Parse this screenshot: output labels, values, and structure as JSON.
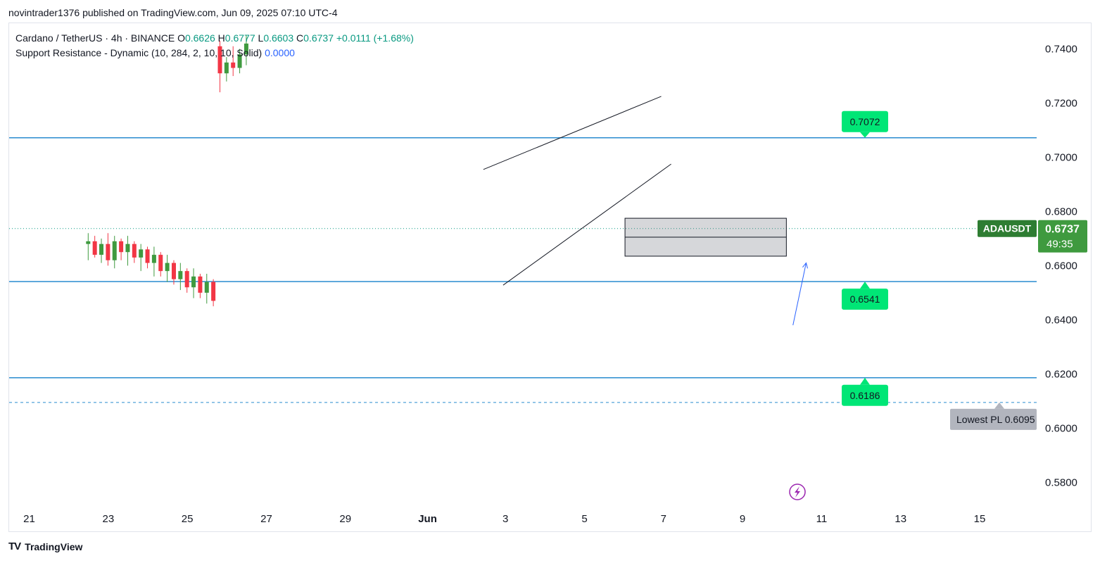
{
  "header": {
    "published_text": "novintrader1376 published on TradingView.com, Jun 09, 2025 07:10 UTC-4"
  },
  "legend": {
    "symbol_line": "Cardano / TetherUS · 4h · BINANCE",
    "o_label": "O",
    "o_value": "0.6626",
    "h_label": "H",
    "h_value": "0.6777",
    "l_label": "L",
    "l_value": "0.6603",
    "c_label": "C",
    "c_value": "0.6737",
    "change": "+0.0111 (+1.68%)",
    "indicator_label": "Support Resistance - Dynamic (10, 284, 2, 10, 10, Solid)",
    "indicator_value": "0.0000"
  },
  "price_scale": {
    "ticks": [
      "0.7400",
      "0.7200",
      "0.7000",
      "0.6800",
      "0.6600",
      "0.6400",
      "0.6200",
      "0.6000",
      "0.5800"
    ],
    "current_symbol": "ADAUSDT",
    "current_price": "0.6737",
    "countdown": "49:35"
  },
  "time_scale": {
    "ticks": [
      "21",
      "23",
      "25",
      "27",
      "29",
      "Jun",
      "3",
      "5",
      "7",
      "9",
      "11",
      "13",
      "15"
    ]
  },
  "levels": [
    {
      "label": "0.7072",
      "price": 0.7072
    },
    {
      "label": "0.6541",
      "price": 0.6541
    },
    {
      "label": "0.6186",
      "price": 0.6186
    }
  ],
  "lowest_pl": {
    "label": "Lowest PL 0.6095",
    "price": 0.6095
  },
  "footer": {
    "brand": "TradingView",
    "mark": "TV"
  },
  "colors": {
    "up": "#089981",
    "up_fill": "#3f9a3f",
    "down": "#f23645",
    "level_line": "#2a8ccf",
    "label_green": "#00e676",
    "symbol_badge": "#2e7d32"
  },
  "chart_data": {
    "type": "candlestick",
    "symbol": "ADAUSDT",
    "interval": "4h",
    "ylim": [
      0.571,
      0.7495
    ],
    "x_range": [
      "2025-05-20",
      "2025-06-15"
    ],
    "grid": false,
    "candles": [
      {
        "t": "2025-05-22T00:00",
        "o": 0.668,
        "h": 0.672,
        "l": 0.662,
        "c": 0.669
      },
      {
        "t": "2025-05-22T04:00",
        "o": 0.669,
        "h": 0.671,
        "l": 0.663,
        "c": 0.664
      },
      {
        "t": "2025-05-22T08:00",
        "o": 0.664,
        "h": 0.67,
        "l": 0.661,
        "c": 0.668
      },
      {
        "t": "2025-05-22T12:00",
        "o": 0.668,
        "h": 0.672,
        "l": 0.66,
        "c": 0.662
      },
      {
        "t": "2025-05-22T16:00",
        "o": 0.662,
        "h": 0.671,
        "l": 0.659,
        "c": 0.669
      },
      {
        "t": "2025-05-22T20:00",
        "o": 0.669,
        "h": 0.67,
        "l": 0.662,
        "c": 0.665
      },
      {
        "t": "2025-05-23T00:00",
        "o": 0.665,
        "h": 0.671,
        "l": 0.66,
        "c": 0.668
      },
      {
        "t": "2025-05-23T04:00",
        "o": 0.668,
        "h": 0.669,
        "l": 0.661,
        "c": 0.663
      },
      {
        "t": "2025-05-23T08:00",
        "o": 0.663,
        "h": 0.668,
        "l": 0.658,
        "c": 0.666
      },
      {
        "t": "2025-05-23T12:00",
        "o": 0.666,
        "h": 0.667,
        "l": 0.659,
        "c": 0.661
      },
      {
        "t": "2025-05-23T16:00",
        "o": 0.661,
        "h": 0.667,
        "l": 0.656,
        "c": 0.664
      },
      {
        "t": "2025-05-23T20:00",
        "o": 0.664,
        "h": 0.665,
        "l": 0.656,
        "c": 0.658
      },
      {
        "t": "2025-05-24T00:00",
        "o": 0.658,
        "h": 0.664,
        "l": 0.654,
        "c": 0.661
      },
      {
        "t": "2025-05-24T04:00",
        "o": 0.661,
        "h": 0.662,
        "l": 0.653,
        "c": 0.655
      },
      {
        "t": "2025-05-24T08:00",
        "o": 0.655,
        "h": 0.661,
        "l": 0.651,
        "c": 0.658
      },
      {
        "t": "2025-05-24T12:00",
        "o": 0.658,
        "h": 0.659,
        "l": 0.65,
        "c": 0.652
      },
      {
        "t": "2025-05-24T16:00",
        "o": 0.652,
        "h": 0.659,
        "l": 0.648,
        "c": 0.656
      },
      {
        "t": "2025-05-24T20:00",
        "o": 0.656,
        "h": 0.657,
        "l": 0.648,
        "c": 0.65
      },
      {
        "t": "2025-05-25T00:00",
        "o": 0.65,
        "h": 0.657,
        "l": 0.646,
        "c": 0.654
      },
      {
        "t": "2025-05-25T04:00",
        "o": 0.654,
        "h": 0.655,
        "l": 0.645,
        "c": 0.647
      },
      {
        "t": "2025-05-25T08:00",
        "o": 0.741,
        "h": 0.743,
        "l": 0.724,
        "c": 0.731
      },
      {
        "t": "2025-05-25T12:00",
        "o": 0.731,
        "h": 0.737,
        "l": 0.728,
        "c": 0.735
      },
      {
        "t": "2025-05-25T16:00",
        "o": 0.735,
        "h": 0.741,
        "l": 0.73,
        "c": 0.733
      },
      {
        "t": "2025-05-25T20:00",
        "o": 0.733,
        "h": 0.74,
        "l": 0.731,
        "c": 0.738
      },
      {
        "t": "2025-05-26T00:00",
        "o": 0.738,
        "h": 0.745,
        "l": 0.734,
        "c": 0.742
      }
    ],
    "shapes": [
      {
        "kind": "trendline",
        "from": [
          "2025-06-01T00:00",
          0.6955
        ],
        "to": [
          "2025-06-05T12:00",
          0.7225
        ]
      },
      {
        "kind": "trendline",
        "from": [
          "2025-06-01T12:00",
          0.6528
        ],
        "to": [
          "2025-06-05T18:00",
          0.6975
        ]
      },
      {
        "kind": "rectangle",
        "from": [
          "2025-06-04T14:00",
          0.6775
        ],
        "to": [
          "2025-06-08T16:00",
          0.6635
        ]
      },
      {
        "kind": "arrow",
        "from": [
          "2025-06-08T20:00",
          0.638
        ],
        "to": [
          "2025-06-09T04:00",
          0.661
        ]
      }
    ]
  }
}
